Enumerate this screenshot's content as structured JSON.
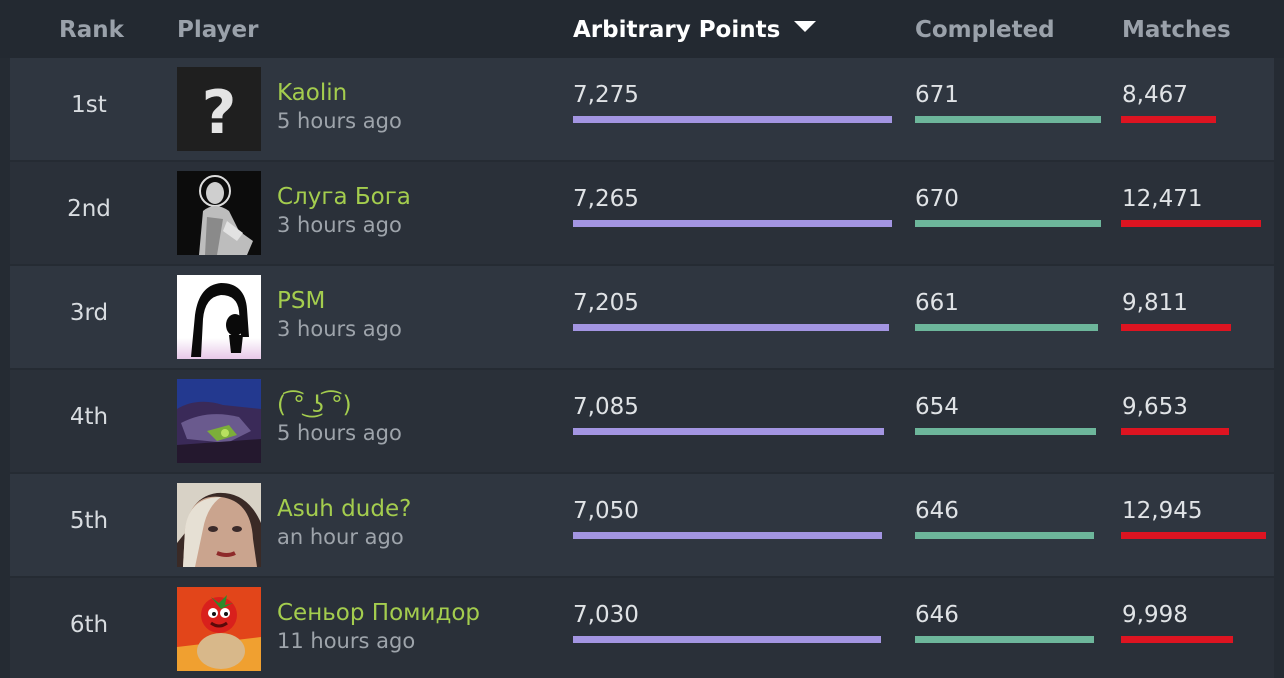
{
  "header": {
    "rank": "Rank",
    "player": "Player",
    "points": "Arbitrary Points",
    "completed": "Completed",
    "matches": "Matches"
  },
  "colors": {
    "points_bar": "#a395e2",
    "completed_bar": "#6db69b",
    "matches_bar": "#dd1421",
    "player_name": "#a4cd4e"
  },
  "rows": [
    {
      "rank": "1st",
      "name": "Kaolin",
      "time": "5 hours ago",
      "points": "7,275",
      "completed": "671",
      "matches": "8,467",
      "avatar": "question-mark-avatar",
      "points_fill": 1.0,
      "completed_fill": 1.0,
      "matches_fill": 0.654
    },
    {
      "rank": "2nd",
      "name": "Слуга Бога",
      "time": "3 hours ago",
      "points": "7,265",
      "completed": "670",
      "matches": "12,471",
      "avatar": "saint-portrait-avatar",
      "points_fill": 0.999,
      "completed_fill": 0.999,
      "matches_fill": 0.963
    },
    {
      "rank": "3rd",
      "name": "PSM",
      "time": "3 hours ago",
      "points": "7,205",
      "completed": "661",
      "matches": "9,811",
      "avatar": "contortionist-silhouette-avatar",
      "points_fill": 0.99,
      "completed_fill": 0.985,
      "matches_fill": 0.758
    },
    {
      "rank": "4th",
      "name": "( ͡° ͜ʖ ͡°)",
      "time": "5 hours ago",
      "points": "7,085",
      "completed": "654",
      "matches": "9,653",
      "avatar": "robot-art-avatar",
      "points_fill": 0.974,
      "completed_fill": 0.975,
      "matches_fill": 0.746
    },
    {
      "rank": "5th",
      "name": "Asuh dude?",
      "time": "an hour ago",
      "points": "7,050",
      "completed": "646",
      "matches": "12,945",
      "avatar": "blonde-face-avatar",
      "points_fill": 0.969,
      "completed_fill": 0.963,
      "matches_fill": 1.0
    },
    {
      "rank": "6th",
      "name": "Сеньор Помидор",
      "time": "11 hours ago",
      "points": "7,030",
      "completed": "646",
      "matches": "9,998",
      "avatar": "tomato-character-avatar",
      "points_fill": 0.966,
      "completed_fill": 0.963,
      "matches_fill": 0.772
    }
  ]
}
